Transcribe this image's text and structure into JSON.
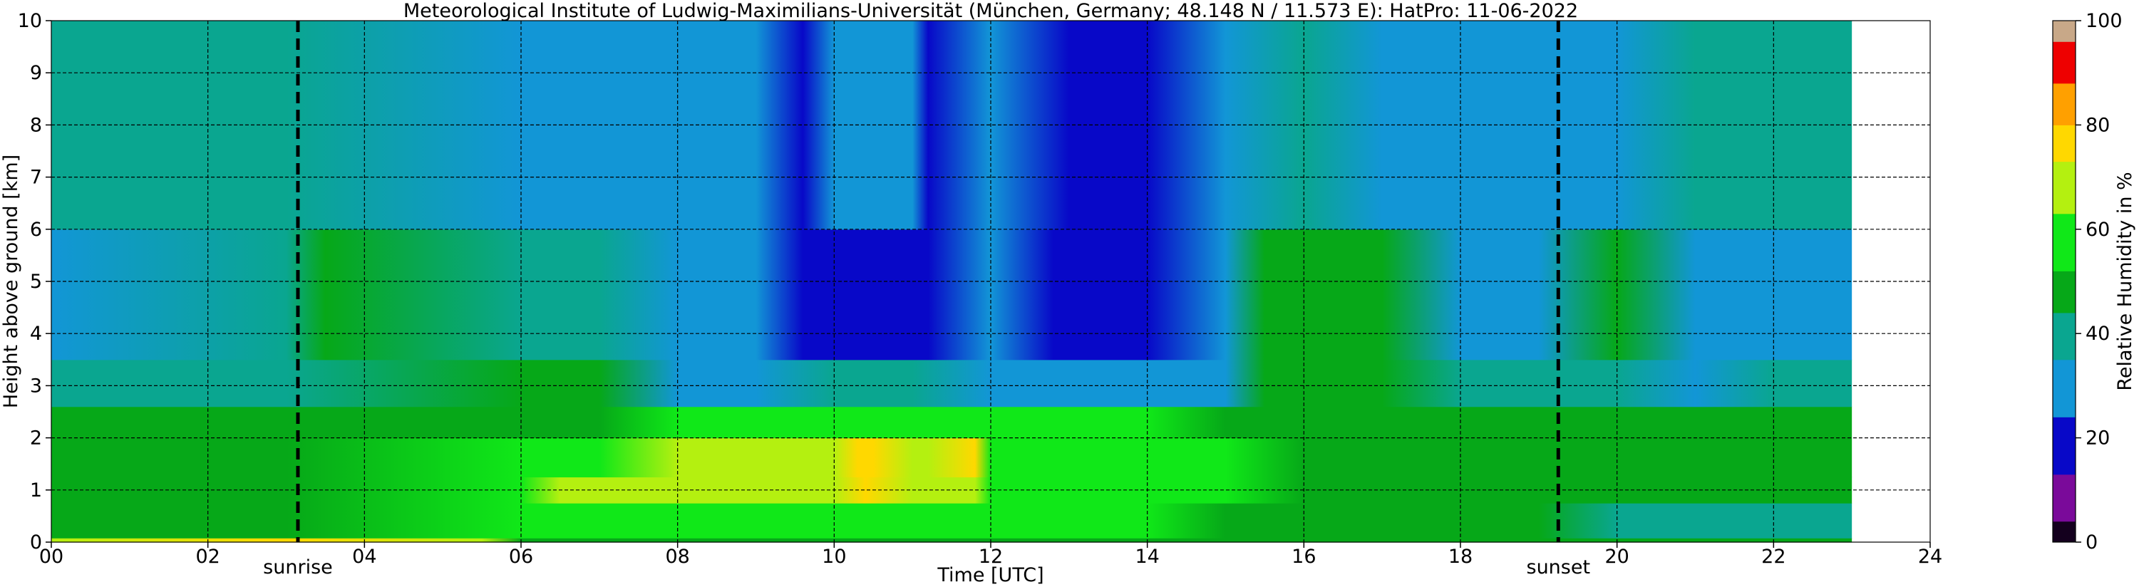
{
  "chart_data": {
    "type": "heatmap",
    "title": "Meteorological Institute of Ludwig-Maximilians-Universität (München, Germany; 48.148 N / 11.573 E):    HatPro: 11-06-2022",
    "xlabel": "Time [UTC]",
    "ylabel": "Height above ground [km]",
    "xlim": [
      0,
      24
    ],
    "ylim": [
      0,
      10
    ],
    "data_xlim": [
      0,
      23
    ],
    "x_ticks": [
      0,
      2,
      4,
      6,
      8,
      10,
      12,
      14,
      16,
      18,
      20,
      22,
      24
    ],
    "x_tick_labels": [
      "00",
      "02",
      "04",
      "06",
      "08",
      "10",
      "12",
      "14",
      "16",
      "18",
      "20",
      "22",
      "24"
    ],
    "y_ticks": [
      0,
      1,
      2,
      3,
      4,
      5,
      6,
      7,
      8,
      9,
      10
    ],
    "y_tick_labels": [
      "0",
      "1",
      "2",
      "3",
      "4",
      "5",
      "6",
      "7",
      "8",
      "9",
      "10"
    ],
    "grid": true,
    "colorbar": {
      "label": "Relative Humidity in %",
      "min": 0,
      "max": 100,
      "ticks": [
        0,
        20,
        40,
        60,
        80,
        100
      ],
      "tick_labels": [
        "0",
        "20",
        "40",
        "60",
        "80",
        "100"
      ],
      "bands": [
        {
          "from": 0,
          "to": 4,
          "color": "#14001e"
        },
        {
          "from": 4,
          "to": 13,
          "color": "#7a0a9a"
        },
        {
          "from": 13,
          "to": 24,
          "color": "#0808c8"
        },
        {
          "from": 24,
          "to": 35,
          "color": "#1296d6"
        },
        {
          "from": 35,
          "to": 44,
          "color": "#0aa690"
        },
        {
          "from": 44,
          "to": 52,
          "color": "#06a818"
        },
        {
          "from": 52,
          "to": 63,
          "color": "#10e818"
        },
        {
          "from": 63,
          "to": 73,
          "color": "#b4f010"
        },
        {
          "from": 73,
          "to": 80,
          "color": "#ffd800"
        },
        {
          "from": 80,
          "to": 88,
          "color": "#ffa000"
        },
        {
          "from": 88,
          "to": 96,
          "color": "#ee0000"
        },
        {
          "from": 96,
          "to": 100,
          "color": "#c8a888"
        }
      ]
    },
    "events": [
      {
        "label": "sunrise",
        "time": 3.15
      },
      {
        "label": "sunset",
        "time": 19.25
      }
    ],
    "layers": [
      {
        "name": "",
        "ybottom": 0,
        "ytop": 0.08,
        "x": [
          0,
          3,
          5.5,
          6,
          23
        ],
        "values": [
          72,
          74,
          70,
          50,
          46
        ]
      },
      {
        "name": "",
        "ybottom": 0.08,
        "ytop": 0.75,
        "x": [
          0,
          3,
          6,
          6.5,
          7,
          8,
          9,
          10,
          11,
          12,
          13,
          14,
          15,
          16,
          17,
          18,
          19,
          20,
          21,
          22,
          23
        ],
        "values": [
          50,
          51,
          57,
          62,
          60,
          56,
          55,
          54,
          55,
          56,
          54,
          52,
          50,
          48,
          48,
          47,
          44,
          40,
          38,
          38,
          38
        ]
      },
      {
        "name": "",
        "ybottom": 0.75,
        "ytop": 1.25,
        "x": [
          0,
          3,
          6,
          6.5,
          7,
          8,
          9,
          9.6,
          10,
          10.4,
          11,
          11.2,
          11.5,
          11.8,
          12,
          13,
          14,
          15,
          16,
          17,
          18,
          19,
          20,
          21,
          22,
          23
        ],
        "values": [
          49,
          50,
          58,
          66,
          68,
          65,
          64,
          70,
          66,
          74,
          66,
          72,
          66,
          72,
          62,
          62,
          60,
          54,
          50,
          50,
          49,
          47,
          46,
          46,
          46,
          46
        ]
      },
      {
        "name": "",
        "ybottom": 1.25,
        "ytop": 2.0,
        "x": [
          0,
          3,
          6,
          7,
          8,
          9,
          9.6,
          10,
          10.3,
          10.5,
          11,
          11.2,
          11.8,
          12,
          13,
          14,
          15,
          16,
          17,
          18,
          19,
          20,
          21,
          22,
          23
        ],
        "values": [
          48,
          49,
          56,
          62,
          64,
          64,
          70,
          68,
          76,
          74,
          65,
          72,
          73,
          62,
          62,
          58,
          54,
          50,
          50,
          48,
          48,
          46,
          46,
          46,
          46
        ]
      },
      {
        "name": "",
        "ybottom": 2.0,
        "ytop": 2.6,
        "x": [
          0,
          3,
          6,
          7,
          8,
          9,
          10,
          11,
          12,
          13,
          14,
          15,
          16,
          17,
          18,
          19,
          20,
          21,
          22,
          23
        ],
        "values": [
          44,
          46,
          48,
          50,
          52,
          56,
          60,
          58,
          56,
          56,
          54,
          50,
          48,
          48,
          45,
          44,
          44,
          44,
          44,
          44
        ]
      },
      {
        "name": "",
        "ybottom": 2.6,
        "ytop": 3.5,
        "x": [
          0,
          3,
          6,
          7,
          8,
          9,
          10,
          11,
          12,
          13,
          14,
          15,
          15.5,
          16,
          17,
          18,
          19,
          20,
          21,
          22,
          23
        ],
        "values": [
          36,
          40,
          44,
          46,
          34,
          32,
          40,
          38,
          30,
          30,
          30,
          32,
          48,
          48,
          50,
          40,
          36,
          40,
          34,
          36,
          36
        ]
      },
      {
        "name": "",
        "ybottom": 3.5,
        "ytop": 6.0,
        "x": [
          0,
          3,
          3.5,
          6,
          7,
          8,
          8.5,
          9,
          9.6,
          10,
          11,
          11.2,
          12,
          12.8,
          13.3,
          13.7,
          14,
          15,
          15.5,
          16,
          17,
          18,
          19,
          20,
          21,
          22,
          23
        ],
        "values": [
          30,
          38,
          44,
          40,
          40,
          28,
          26,
          24,
          14,
          22,
          22,
          14,
          24,
          16,
          16,
          16,
          16,
          24,
          44,
          44,
          48,
          32,
          30,
          46,
          28,
          30,
          30
        ]
      },
      {
        "name": "",
        "ybottom": 6.0,
        "ytop": 10.0,
        "x": [
          0,
          3,
          6,
          7,
          8,
          9,
          9.6,
          10,
          11,
          11.2,
          12,
          13,
          14,
          15,
          16,
          17,
          18,
          19,
          20,
          21,
          22,
          23
        ],
        "values": [
          38,
          38,
          34,
          32,
          30,
          26,
          18,
          24,
          24,
          18,
          26,
          20,
          22,
          32,
          36,
          34,
          32,
          34,
          34,
          36,
          38,
          38
        ]
      }
    ]
  }
}
